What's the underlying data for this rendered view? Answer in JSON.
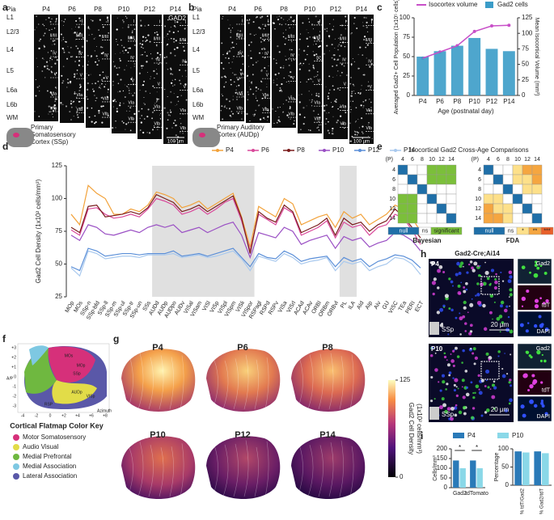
{
  "panel_labels": [
    "a",
    "b",
    "c",
    "d",
    "e",
    "f",
    "g",
    "h",
    "i"
  ],
  "panel_a": {
    "ages": [
      "P4",
      "P6",
      "P8",
      "P10",
      "P12",
      "P14"
    ],
    "layers": [
      "Pia",
      "L1",
      "L2/3",
      "L4",
      "L5",
      "L6a",
      "L6b",
      "WM"
    ],
    "column_layers": [
      "I",
      "II/III",
      "IV",
      "V",
      "VIa",
      "VIb"
    ],
    "stain": "GAD2",
    "region": "Primary Somatosensory Cortex (SSp)",
    "scale": "100 µm"
  },
  "panel_b": {
    "ages": [
      "P4",
      "P6",
      "P8",
      "P10",
      "P12",
      "P14"
    ],
    "layers": [
      "Pia",
      "L1",
      "L2/3",
      "L4",
      "L5",
      "L6a",
      "L6b",
      "WM"
    ],
    "column_layers": [
      "I",
      "II/III",
      "IV",
      "V",
      "VIa",
      "VIb"
    ],
    "region": "Primary Auditory Cortex (AUDp)",
    "scale": "100 µm"
  },
  "chart_data": [
    {
      "type": "combo",
      "categories": [
        "P4",
        "P6",
        "P8",
        "P10",
        "P12",
        "P14"
      ],
      "series": [
        {
          "name": "Isocortex volume",
          "color": "#c84fc8",
          "type": "line",
          "axis": "y2",
          "values": [
            60,
            70,
            80,
            103,
            112,
            113
          ]
        },
        {
          "name": "Gad2 cells",
          "color": "#3b9cc8",
          "type": "bar",
          "values": [
            50,
            57,
            64,
            74,
            60,
            57
          ]
        }
      ],
      "ylim": [
        0,
        100
      ],
      "yticks": [
        0,
        25,
        50,
        75,
        100
      ],
      "y2lim": [
        0,
        125
      ],
      "y2ticks": [
        0,
        25,
        50,
        75,
        100,
        125
      ],
      "xlabel": "Age (postnatal day)",
      "ylabel": "Averaged Gad2+ Cell Population (1x10⁵ cells)",
      "y2label": "Mean Isocortical Volume (mm³)"
    },
    {
      "type": "line",
      "categories": [
        "MOp",
        "MOs",
        "SSp-n",
        "SSp-bfd",
        "SSp-ll",
        "SSp-m",
        "SSp-ul",
        "SSp-tr",
        "SSp-un",
        "SSs",
        "AUDd",
        "AUDp",
        "AUDpo",
        "AUDv",
        "VISal",
        "VISam",
        "VISl",
        "VISp",
        "VISpl",
        "VISpm",
        "VISli",
        "VISpor",
        "RSPagl",
        "RSPd",
        "RSPv",
        "VISa",
        "VISrl",
        "ACAd",
        "ACAv",
        "ORBl",
        "ORBm",
        "ORBvl",
        "PL",
        "ILA",
        "AId",
        "AIp",
        "AIv",
        "GU",
        "VISC",
        "TEa",
        "PERI",
        "ECT"
      ],
      "series": [
        {
          "name": "P4",
          "color": "#f2a23a",
          "values": [
            88,
            80,
            110,
            104,
            100,
            88,
            88,
            92,
            90,
            95,
            105,
            103,
            100,
            93,
            95,
            98,
            92,
            96,
            100,
            104,
            86,
            63,
            94,
            90,
            86,
            100,
            96,
            80,
            83,
            86,
            88,
            78,
            90,
            85,
            88,
            80,
            84,
            88,
            95,
            92,
            85,
            75
          ]
        },
        {
          "name": "P6",
          "color": "#d9489a",
          "values": [
            76,
            72,
            92,
            93,
            88,
            85,
            86,
            88,
            86,
            92,
            100,
            98,
            95,
            88,
            90,
            93,
            88,
            92,
            97,
            100,
            83,
            60,
            88,
            84,
            80,
            93,
            89,
            72,
            75,
            78,
            83,
            70,
            82,
            78,
            80,
            72,
            78,
            80,
            88,
            85,
            76,
            65
          ]
        },
        {
          "name": "P8",
          "color": "#7a1c1c",
          "values": [
            78,
            74,
            94,
            95,
            86,
            87,
            88,
            90,
            88,
            93,
            103,
            100,
            97,
            90,
            92,
            95,
            90,
            94,
            98,
            102,
            85,
            58,
            90,
            85,
            82,
            95,
            90,
            74,
            77,
            80,
            85,
            72,
            85,
            80,
            82,
            75,
            80,
            83,
            92,
            86,
            78,
            70
          ]
        },
        {
          "name": "P10",
          "color": "#9a4fc4",
          "values": [
            72,
            68,
            80,
            78,
            73,
            72,
            74,
            76,
            74,
            78,
            80,
            78,
            80,
            74,
            76,
            78,
            74,
            77,
            80,
            82,
            72,
            55,
            74,
            72,
            70,
            78,
            75,
            65,
            68,
            70,
            72,
            62,
            71,
            68,
            70,
            63,
            66,
            68,
            74,
            72,
            68,
            60
          ]
        },
        {
          "name": "P12",
          "color": "#5b8fd8",
          "values": [
            48,
            45,
            62,
            60,
            56,
            57,
            58,
            58,
            57,
            58,
            58,
            58,
            60,
            56,
            57,
            58,
            56,
            58,
            60,
            62,
            55,
            48,
            58,
            55,
            54,
            60,
            57,
            52,
            54,
            55,
            56,
            48,
            55,
            52,
            54,
            48,
            52,
            54,
            57,
            56,
            53,
            47
          ]
        },
        {
          "name": "P14",
          "color": "#a9c9ee",
          "values": [
            47,
            41,
            60,
            58,
            54,
            55,
            56,
            56,
            55,
            57,
            57,
            57,
            58,
            55,
            56,
            57,
            55,
            56,
            58,
            60,
            54,
            45,
            56,
            54,
            52,
            58,
            55,
            50,
            52,
            53,
            55,
            45,
            52,
            50,
            52,
            45,
            48,
            50,
            55,
            54,
            50,
            42
          ]
        }
      ],
      "ylim": [
        25,
        125
      ],
      "yticks": [
        25,
        50,
        75,
        100,
        125
      ],
      "ylabel": "Gad2 Cell Density (1x10² cells/mm³)"
    },
    {
      "type": "bar",
      "categories": [
        "Gad2",
        "tdTomato"
      ],
      "series": [
        {
          "name": "P4",
          "color": "#2a7ab8",
          "values": [
            140,
            140
          ]
        },
        {
          "name": "P10",
          "color": "#8ad8e8",
          "values": [
            100,
            100
          ]
        }
      ],
      "ylim": [
        0,
        200
      ],
      "yticks": [
        0,
        50,
        100,
        150,
        200
      ],
      "ylabel": "Cells/mm³",
      "annotations": [
        "*",
        "*"
      ]
    },
    {
      "type": "bar",
      "categories": [
        "% tdT/Gad2",
        "% Gad2/tdT"
      ],
      "series": [
        {
          "color": "#2a7ab8",
          "values": [
            93,
            93
          ]
        },
        {
          "color": "#8ad8e8",
          "values": [
            90,
            88
          ]
        }
      ],
      "ylim": [
        0,
        100
      ],
      "yticks": [
        0,
        50,
        100
      ],
      "ylabel": "Percentage"
    }
  ],
  "panel_e": {
    "title": "Isocortical Gad2 Cross-Age Comparisons",
    "axis_label": "(P)",
    "ages": [
      "4",
      "6",
      "8",
      "10",
      "12",
      "14"
    ],
    "bayesian": {
      "label": "Bayesian",
      "legend": [
        {
          "label": "null",
          "color": "#1f6fa8"
        },
        {
          "label": "ns",
          "color": "#ffffff"
        },
        {
          "label": "significant",
          "color": "#7bbf3a"
        }
      ],
      "matrix": [
        [
          "null",
          "ns",
          "ns",
          "significant",
          "significant",
          "significant"
        ],
        [
          "ns",
          "null",
          "ns",
          "significant",
          "significant",
          "significant"
        ],
        [
          "ns",
          "ns",
          "null",
          "ns",
          "ns",
          "ns"
        ],
        [
          "significant",
          "significant",
          "ns",
          "null",
          "ns",
          "ns"
        ],
        [
          "significant",
          "significant",
          "ns",
          "ns",
          "null",
          "ns"
        ],
        [
          "significant",
          "significant",
          "ns",
          "ns",
          "ns",
          "null"
        ]
      ]
    },
    "fda": {
      "label": "FDA",
      "legend": [
        {
          "label": "null",
          "color": "#1f6fa8"
        },
        {
          "label": "ns",
          "color": "#ffffff"
        },
        {
          "label": "*",
          "color": "#fde08a"
        },
        {
          "label": "**",
          "color": "#f5a640"
        },
        {
          "label": "***",
          "color": "#e8602a"
        }
      ],
      "matrix": [
        [
          "null",
          "ns",
          "ns",
          "*",
          "**",
          "**"
        ],
        [
          "ns",
          "null",
          "ns",
          "*",
          "*",
          "**"
        ],
        [
          "ns",
          "ns",
          "null",
          "ns",
          "*",
          "*"
        ],
        [
          "*",
          "*",
          "ns",
          "null",
          "ns",
          "ns"
        ],
        [
          "**",
          "*",
          "*",
          "ns",
          "null",
          "ns"
        ],
        [
          "**",
          "**",
          "*",
          "ns",
          "ns",
          "null"
        ]
      ]
    }
  },
  "panel_f": {
    "yticks": [
      "+3",
      "+2",
      "+1",
      "0",
      "-1",
      "-2",
      "-3"
    ],
    "xticks": [
      "-4",
      "-2",
      "0",
      "+2",
      "+4",
      "+6",
      "+8"
    ],
    "ylabel": "A/P",
    "xlabel": "Azimuth",
    "regions": [
      "MOs",
      "MOp",
      "SSp",
      "AUDp",
      "VISp",
      "RSP"
    ],
    "key_title": "Cortical Flatmap Color Key",
    "key": [
      {
        "label": "Motor Somatosensory",
        "color": "#d6307a"
      },
      {
        "label": "Audio Visual",
        "color": "#e2dc48"
      },
      {
        "label": "Medial Prefrontal",
        "color": "#6fb840"
      },
      {
        "label": "Medial Association",
        "color": "#7ec8e2"
      },
      {
        "label": "Lateral Association",
        "color": "#5a58a8"
      }
    ]
  },
  "panel_g": {
    "ages": [
      "P4",
      "P6",
      "P8",
      "P10",
      "P12",
      "P14"
    ],
    "colorbar": {
      "ticks": [
        0,
        125
      ],
      "label": "Gad2 Cell Density",
      "unit": "(1x10² cells/mm³)"
    }
  },
  "panel_h": {
    "title": "Gad2-Cre;Ai14",
    "rows": [
      {
        "age": "P4",
        "region": "SSp"
      },
      {
        "age": "P10",
        "region": "SSp"
      }
    ],
    "insets": [
      "Gad2",
      "tdT",
      "DAPI"
    ],
    "scale": "20 µm"
  }
}
